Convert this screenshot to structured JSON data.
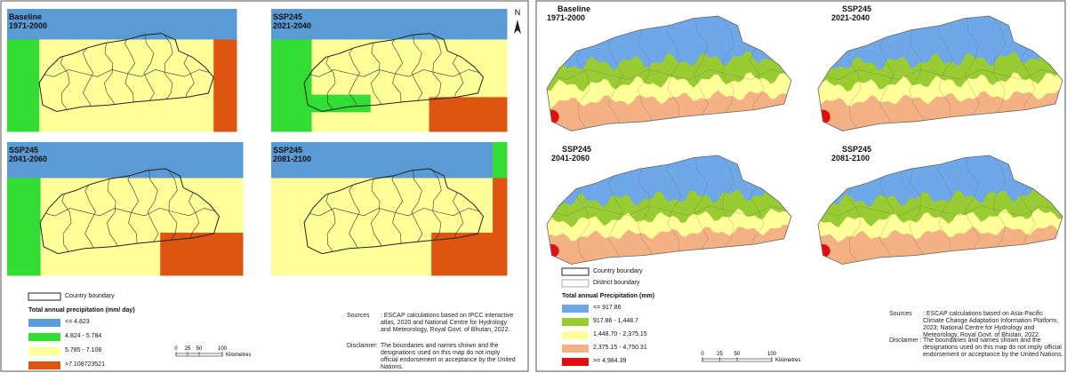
{
  "panels": [
    {
      "maps": [
        {
          "title": "Baseline",
          "period": "1971-2000"
        },
        {
          "title": "SSP245",
          "period": "2021-2040"
        },
        {
          "title": "SSP245",
          "period": "2041-2060"
        },
        {
          "title": "SSP245",
          "period": "2081-2100"
        }
      ],
      "north": "N",
      "legend": {
        "boundaries": [
          "Country boundary"
        ],
        "title": "Total annual precipitation (mm/ day)",
        "classes": [
          {
            "label": "<= 4.823",
            "color": "#5b9bd5"
          },
          {
            "label": "4.824 - 5.784",
            "color": "#33dd33"
          },
          {
            "label": "5.785 - 7.108",
            "color": "#ffff99"
          },
          {
            "label": ">7.108723521",
            "color": "#dd5511"
          }
        ]
      },
      "scale": {
        "ticks": [
          0,
          25,
          50,
          100
        ],
        "unit": "Kilometres"
      },
      "sources": {
        "label": "Sources",
        "text": ": ESCAP calculations based on IPCC interactive atlas, 2020 and National Centre for Hydrology and Meteorology, Royal Govt. of Bhutan, 2022."
      },
      "disclaimer": {
        "label": "Disclaimer:",
        "text": "The boundaries and names shown and the designations used on this map do not imply official endorsement or acceptance by the United Nations."
      }
    },
    {
      "maps": [
        {
          "title": "Baseline",
          "period": "1971-2000"
        },
        {
          "title": "SSP245",
          "period": "2021-2040"
        },
        {
          "title": "SSP245",
          "period": "2041-2060"
        },
        {
          "title": "SSP245",
          "period": "2081-2100"
        }
      ],
      "legend": {
        "boundaries": [
          "Country boundary",
          "District boundary"
        ],
        "title": "Total annual Precipitation (mm)",
        "classes": [
          {
            "label": "<= 917.86",
            "color": "#6fa8e8"
          },
          {
            "label": "917.86 - 1,448.7",
            "color": "#99cc33"
          },
          {
            "label": "1,448.70 - 2,375.15",
            "color": "#ffff99"
          },
          {
            "label": "2,375.15 - 4,750.31",
            "color": "#f4b183"
          },
          {
            "label": ">= 4,984.39",
            "color": "#e01010"
          }
        ]
      },
      "scale": {
        "ticks": [
          0,
          25,
          50,
          100
        ],
        "unit": "Kilometres"
      },
      "sources": {
        "label": "Sources",
        "text": ": ESCAP calculations based on Asia-Pacific Climate Change Adaptation Information Platform, 2023; National Centre for Hydrology and Meteorology, Royal Govt. of Bhutan, 2022."
      },
      "disclaimer": {
        "label": "Disclaimer :",
        "text": "The boundaries and names shown and the designations used on this map do not imply official endorsement or acceptance by the United Nations."
      }
    }
  ]
}
